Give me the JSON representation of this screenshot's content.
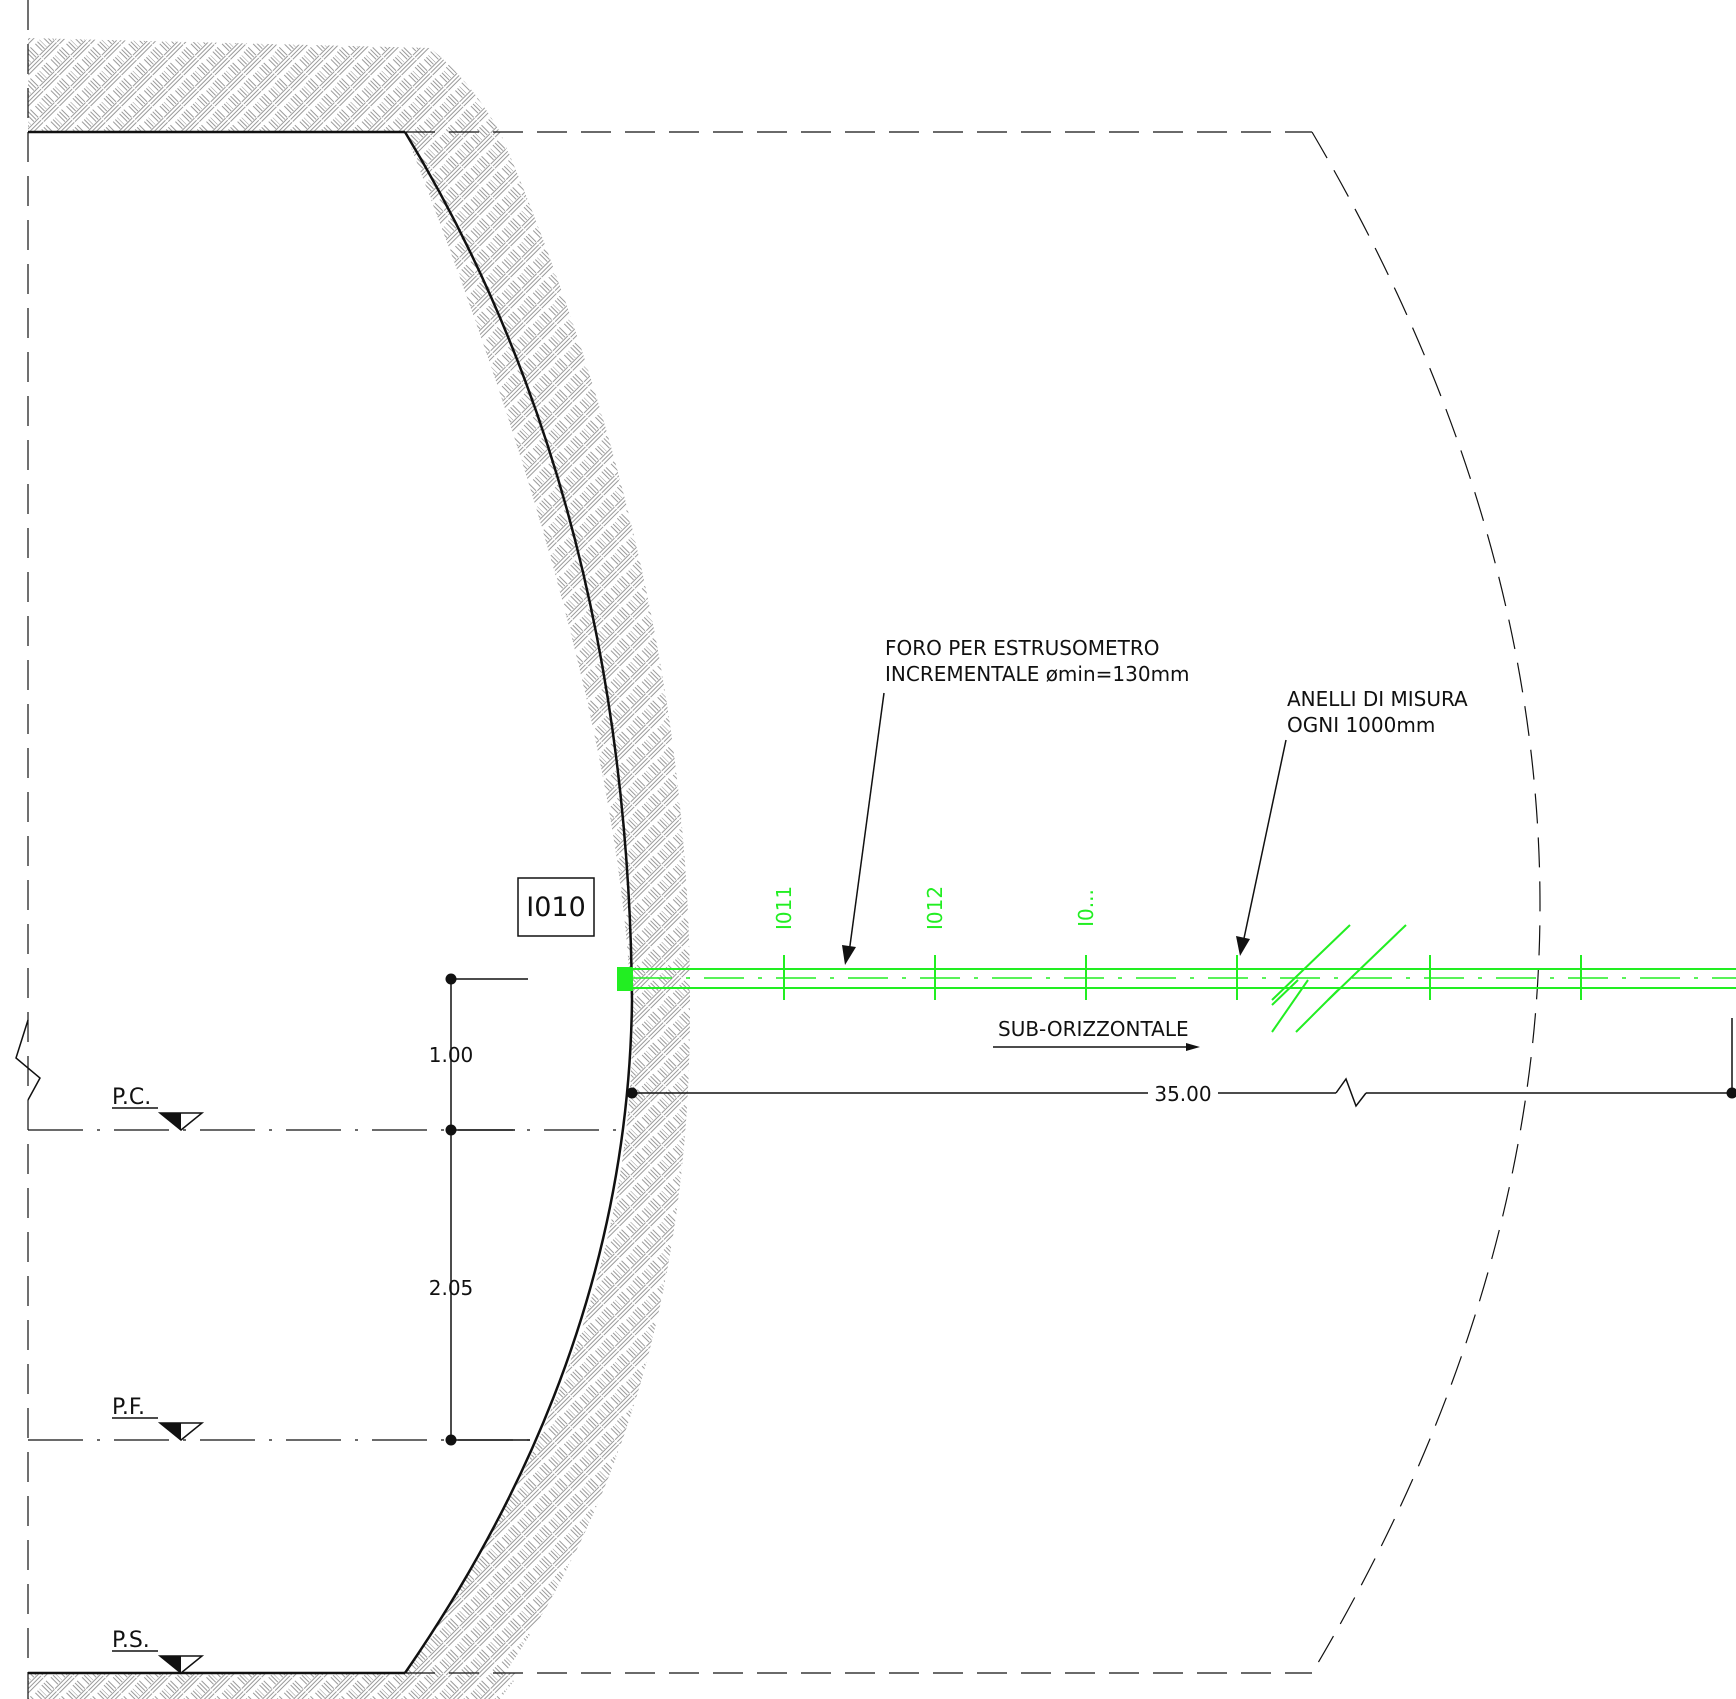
{
  "colors": {
    "line": "#111111",
    "instrument": "#22ee22",
    "hatch": "#9a9a9a",
    "background": "#ffffff"
  },
  "labels": {
    "borehole_note_line1": "FORO PER ESTRUSOMETRO",
    "borehole_note_line2": "INCREMENTALE ømin=130mm",
    "rings_note_line1": "ANELLI DI MISURA",
    "rings_note_line2": "OGNI 1000mm",
    "direction": "SUB-ORIZZONTALE",
    "instrument_tag": "I010",
    "ring_tag_1": "I011",
    "ring_tag_2": "I012",
    "ring_tag_3": "I0...",
    "dim_upper": "1.00",
    "dim_lower": "2.05",
    "dim_length": "35.00",
    "level_pc": "P.C.",
    "level_pf": "P.F.",
    "level_ps": "P.S."
  }
}
